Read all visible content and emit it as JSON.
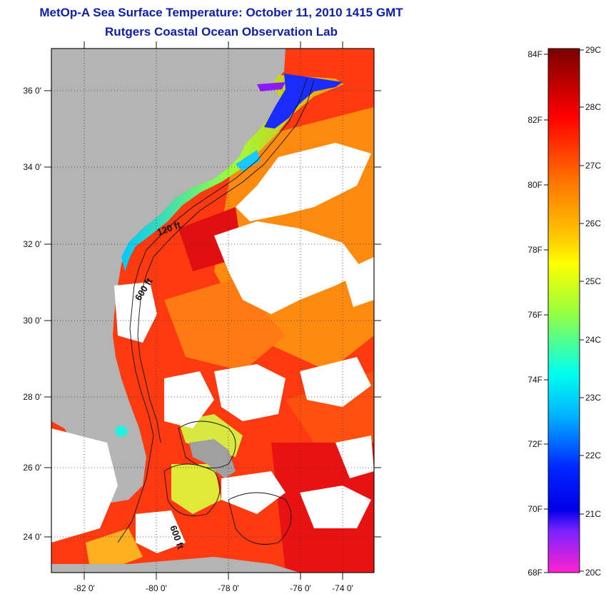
{
  "title": "MetOp-A Sea Surface Temperature:  October 11, 2010 1415 GMT",
  "subtitle": "Rutgers Coastal Ocean Observation Lab",
  "map": {
    "lon_labels": [
      "-82 0'",
      "-80 0'",
      "-78 0'",
      "-76 0'",
      "-74 0'"
    ],
    "lat_labels": [
      "36 0'",
      "34 0'",
      "32 0'",
      "30 0'",
      "28 0'",
      "26 0'",
      "24 0'"
    ],
    "contours": [
      "120 ft",
      "600 ft",
      "600 ft"
    ]
  },
  "colorbar": {
    "f_labels": [
      "84F",
      "82F",
      "80F",
      "78F",
      "76F",
      "74F",
      "72F",
      "70F",
      "68F"
    ],
    "c_labels": [
      "29C",
      "28C",
      "27C",
      "26C",
      "25C",
      "24C",
      "23C",
      "22C",
      "21C",
      "20C"
    ]
  },
  "colors": {
    "title": "#0b1fa8",
    "land": "#b4b4b4",
    "cloud": "#ffffff"
  }
}
